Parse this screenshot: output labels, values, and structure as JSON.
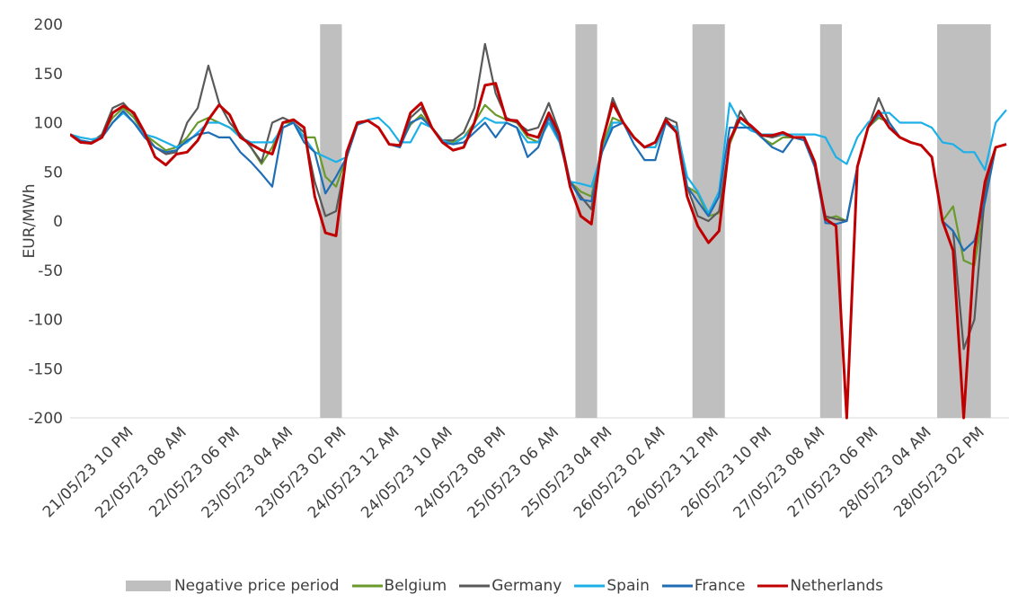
{
  "chart_data": {
    "type": "line",
    "y_label": "EUR/MWh",
    "ylim": [
      -200,
      200
    ],
    "yticks": [
      -200,
      -150,
      -100,
      -50,
      0,
      50,
      100,
      150,
      200
    ],
    "categories": [
      null,
      null,
      null,
      null,
      null,
      null,
      "21/05/23 10 PM",
      null,
      null,
      null,
      null,
      "22/05/23 08 AM",
      null,
      null,
      null,
      null,
      "22/05/23 06 PM",
      null,
      null,
      null,
      null,
      "23/05/23 04 AM",
      null,
      null,
      null,
      null,
      "23/05/23 02 PM",
      null,
      null,
      null,
      null,
      "24/05/23 12 AM",
      null,
      null,
      null,
      null,
      "24/05/23 10 AM",
      null,
      null,
      null,
      null,
      "24/05/23 08 PM",
      null,
      null,
      null,
      null,
      "25/05/23 06 AM",
      null,
      null,
      null,
      null,
      "25/05/23 04 PM",
      null,
      null,
      null,
      null,
      "26/05/23 02 AM",
      null,
      null,
      null,
      null,
      "26/05/23 12 PM",
      null,
      null,
      null,
      null,
      "26/05/23 10 PM",
      null,
      null,
      null,
      null,
      "27/05/23 08 AM",
      null,
      null,
      null,
      null,
      "27/05/23 06 PM",
      null,
      null,
      null,
      null,
      "28/05/23 04 AM",
      null,
      null,
      null,
      null,
      "28/05/23 02 PM",
      null,
      null
    ],
    "series": [
      {
        "name": "Negative price period",
        "type": "bar",
        "color": "#bfbfbf",
        "values": [
          null,
          null,
          null,
          null,
          null,
          null,
          null,
          null,
          null,
          null,
          null,
          null,
          null,
          null,
          null,
          null,
          null,
          null,
          null,
          null,
          null,
          null,
          null,
          null,
          200,
          200,
          null,
          null,
          null,
          null,
          null,
          null,
          null,
          null,
          null,
          null,
          null,
          null,
          null,
          null,
          null,
          null,
          null,
          null,
          null,
          null,
          null,
          null,
          200,
          200,
          null,
          null,
          null,
          null,
          null,
          null,
          null,
          null,
          null,
          200,
          200,
          200,
          null,
          null,
          null,
          null,
          null,
          null,
          null,
          null,
          null,
          200,
          200,
          null,
          null,
          null,
          null,
          null,
          null,
          null,
          null,
          null,
          200,
          200,
          200,
          200,
          200,
          null,
          null
        ]
      },
      {
        "name": "Belgium",
        "type": "line",
        "color": "#6b9a2c",
        "values": [
          88,
          80,
          80,
          88,
          105,
          115,
          105,
          88,
          80,
          72,
          75,
          85,
          100,
          105,
          100,
          95,
          88,
          75,
          58,
          75,
          100,
          100,
          85,
          85,
          45,
          35,
          65,
          98,
          102,
          95,
          78,
          77,
          98,
          108,
          95,
          82,
          80,
          85,
          100,
          118,
          108,
          103,
          100,
          85,
          80,
          108,
          85,
          40,
          30,
          25,
          75,
          105,
          100,
          85,
          75,
          75,
          100,
          95,
          35,
          28,
          5,
          8,
          78,
          105,
          95,
          85,
          78,
          85,
          85,
          85,
          55,
          2,
          5,
          0,
          55,
          95,
          105,
          100,
          85,
          80,
          77,
          65,
          0,
          15,
          -40,
          -45,
          20,
          75,
          78
        ]
      },
      {
        "name": "Germany",
        "type": "line",
        "color": "#595959",
        "values": [
          88,
          80,
          80,
          88,
          115,
          120,
          108,
          88,
          75,
          68,
          70,
          100,
          115,
          158,
          120,
          100,
          88,
          75,
          60,
          100,
          105,
          100,
          90,
          40,
          5,
          10,
          65,
          98,
          102,
          95,
          78,
          77,
          105,
          115,
          95,
          82,
          82,
          90,
          115,
          180,
          130,
          105,
          100,
          92,
          95,
          120,
          90,
          40,
          25,
          12,
          80,
          125,
          100,
          85,
          75,
          80,
          105,
          100,
          35,
          5,
          0,
          10,
          80,
          112,
          95,
          87,
          85,
          88,
          85,
          85,
          55,
          5,
          2,
          0,
          55,
          95,
          125,
          100,
          85,
          80,
          77,
          65,
          0,
          -10,
          -130,
          -100,
          30,
          75,
          78
        ]
      },
      {
        "name": "Spain",
        "type": "line",
        "color": "#1cb0e8",
        "values": [
          88,
          85,
          83,
          85,
          100,
          110,
          100,
          88,
          85,
          80,
          75,
          80,
          90,
          100,
          100,
          95,
          85,
          80,
          80,
          80,
          95,
          100,
          85,
          70,
          65,
          60,
          65,
          98,
          103,
          105,
          95,
          80,
          80,
          100,
          95,
          82,
          78,
          85,
          95,
          105,
          100,
          100,
          95,
          80,
          80,
          100,
          80,
          40,
          38,
          35,
          70,
          100,
          100,
          85,
          75,
          75,
          100,
          95,
          45,
          30,
          8,
          30,
          120,
          100,
          92,
          88,
          88,
          88,
          88,
          88,
          88,
          85,
          65,
          58,
          85,
          100,
          110,
          110,
          100,
          100,
          100,
          95,
          80,
          78,
          70,
          70,
          52,
          100,
          113
        ]
      },
      {
        "name": "France",
        "type": "line",
        "color": "#1f6db5",
        "values": [
          88,
          82,
          80,
          85,
          100,
          112,
          100,
          85,
          75,
          70,
          72,
          82,
          88,
          90,
          85,
          85,
          70,
          60,
          48,
          35,
          95,
          100,
          80,
          70,
          28,
          45,
          65,
          98,
          102,
          95,
          78,
          75,
          100,
          105,
          95,
          80,
          78,
          80,
          90,
          100,
          85,
          100,
          95,
          65,
          75,
          105,
          82,
          40,
          22,
          20,
          70,
          95,
          100,
          78,
          62,
          62,
          100,
          90,
          35,
          20,
          5,
          25,
          95,
          95,
          95,
          85,
          75,
          70,
          85,
          82,
          55,
          -2,
          -3,
          0,
          55,
          95,
          108,
          100,
          85,
          80,
          77,
          65,
          0,
          -10,
          -30,
          -20,
          20,
          75,
          78
        ]
      },
      {
        "name": "Netherlands",
        "type": "line",
        "color": "#c00000",
        "values": [
          88,
          80,
          79,
          85,
          110,
          117,
          110,
          90,
          65,
          57,
          68,
          70,
          82,
          103,
          118,
          108,
          85,
          78,
          72,
          68,
          100,
          103,
          95,
          25,
          -12,
          -15,
          70,
          100,
          102,
          95,
          78,
          77,
          110,
          120,
          95,
          80,
          72,
          75,
          100,
          138,
          140,
          103,
          102,
          88,
          85,
          110,
          88,
          35,
          5,
          -3,
          80,
          120,
          100,
          85,
          75,
          80,
          103,
          90,
          25,
          -5,
          -22,
          -10,
          82,
          105,
          97,
          87,
          87,
          90,
          85,
          85,
          60,
          2,
          -5,
          -200,
          55,
          95,
          112,
          95,
          85,
          80,
          77,
          65,
          0,
          -30,
          -200,
          -30,
          40,
          75,
          78
        ]
      }
    ]
  }
}
